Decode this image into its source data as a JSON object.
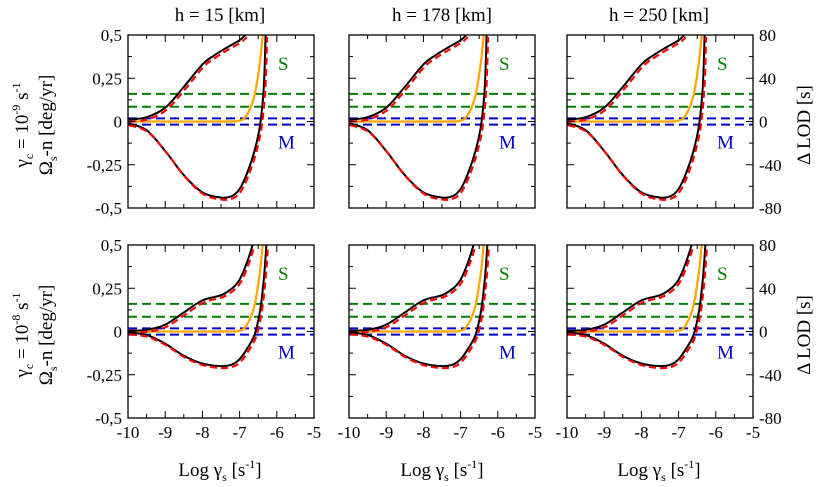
{
  "colors": {
    "S": "#008000",
    "M": "#0000cc",
    "orange": "#ffa500",
    "black": "#000000",
    "red": "#ff0000"
  },
  "chart_data": {
    "type": "line",
    "layout": "2x3 grid of panels",
    "column_titles": [
      "h = 15 [km]",
      "h = 178 [km]",
      "h = 250 [km]"
    ],
    "row_labels": [
      {
        "gamma_c": "γ",
        "gamma_c_sub": "c",
        "eq": " = 10",
        "exp": "-9",
        "unit": " s",
        "unit_exp": "-1"
      },
      {
        "gamma_c": "γ",
        "gamma_c_sub": "c",
        "eq": " = 10",
        "exp": "-8",
        "unit": " s",
        "unit_exp": "-1"
      }
    ],
    "ylabel": {
      "omega": "Ω",
      "sub": "s",
      "rest": "-n  [deg/yr]"
    },
    "y2label": "Δ LOD [s]",
    "xlabel": {
      "pre": "Log γ",
      "sub": "s",
      "unit": " [s",
      "unit_exp": "-1",
      "close": "]"
    },
    "xlim": [
      -10,
      -5
    ],
    "xticks": [
      "-10",
      "-9",
      "-8",
      "-7",
      "-6",
      "-5"
    ],
    "ylim": [
      -0.5,
      0.5
    ],
    "yticks": [
      "0,5",
      "0,25",
      "0",
      "-0,25",
      "-0,5"
    ],
    "y2lim": [
      -80,
      80
    ],
    "y2ticks": [
      "80",
      "40",
      "0",
      "-40",
      "-80"
    ],
    "annotations": {
      "S": "S",
      "M": "M"
    },
    "reference_lines": {
      "S_upper": 0.16,
      "S_lower": 0.085,
      "M_upper": 0.018,
      "M_lower": -0.018
    },
    "panels": [
      {
        "row": 0,
        "col": 0,
        "upper_mid": 0.22,
        "upper_w": 0.55,
        "upper": [
          [
            -10,
            0.01
          ],
          [
            -9.5,
            0.025
          ],
          [
            -9,
            0.08
          ],
          [
            -8.5,
            0.2
          ],
          [
            -8,
            0.33
          ],
          [
            -7.7,
            0.38
          ],
          [
            -7.4,
            0.42
          ],
          [
            -7,
            0.47
          ],
          [
            -6.85,
            0.5
          ]
        ],
        "lower": [
          [
            -10,
            -0.01
          ],
          [
            -9.5,
            -0.05
          ],
          [
            -9,
            -0.17
          ],
          [
            -8.5,
            -0.31
          ],
          [
            -8,
            -0.41
          ],
          [
            -7.5,
            -0.44
          ],
          [
            -7.2,
            -0.43
          ],
          [
            -7,
            -0.39
          ],
          [
            -6.8,
            -0.3
          ],
          [
            -6.6,
            -0.17
          ],
          [
            -6.45,
            -0.02
          ],
          [
            -6.35,
            0.2
          ],
          [
            -6.3,
            0.5
          ]
        ],
        "orange": [
          [
            -10,
            0
          ],
          [
            -7.5,
            0
          ],
          [
            -7,
            0.005
          ],
          [
            -6.8,
            0.04
          ],
          [
            -6.6,
            0.15
          ],
          [
            -6.45,
            0.35
          ],
          [
            -6.38,
            0.5
          ]
        ]
      },
      {
        "row": 0,
        "col": 1,
        "upper": [
          [
            -10,
            0.01
          ],
          [
            -9.5,
            0.025
          ],
          [
            -9,
            0.08
          ],
          [
            -8.5,
            0.2
          ],
          [
            -8,
            0.33
          ],
          [
            -7.7,
            0.38
          ],
          [
            -7.4,
            0.42
          ],
          [
            -7,
            0.47
          ],
          [
            -6.85,
            0.5
          ]
        ],
        "lower": [
          [
            -10,
            -0.01
          ],
          [
            -9.5,
            -0.05
          ],
          [
            -9,
            -0.17
          ],
          [
            -8.5,
            -0.31
          ],
          [
            -8,
            -0.41
          ],
          [
            -7.5,
            -0.44
          ],
          [
            -7.2,
            -0.43
          ],
          [
            -7,
            -0.39
          ],
          [
            -6.8,
            -0.3
          ],
          [
            -6.6,
            -0.17
          ],
          [
            -6.45,
            -0.02
          ],
          [
            -6.35,
            0.2
          ],
          [
            -6.3,
            0.5
          ]
        ],
        "orange": [
          [
            -10,
            0
          ],
          [
            -7.5,
            0
          ],
          [
            -7,
            0.005
          ],
          [
            -6.8,
            0.04
          ],
          [
            -6.6,
            0.15
          ],
          [
            -6.45,
            0.35
          ],
          [
            -6.38,
            0.5
          ]
        ]
      },
      {
        "row": 0,
        "col": 2,
        "upper": [
          [
            -10,
            0.01
          ],
          [
            -9.5,
            0.025
          ],
          [
            -9,
            0.08
          ],
          [
            -8.5,
            0.2
          ],
          [
            -8,
            0.33
          ],
          [
            -7.7,
            0.38
          ],
          [
            -7.4,
            0.42
          ],
          [
            -7,
            0.47
          ],
          [
            -6.85,
            0.5
          ]
        ],
        "lower": [
          [
            -10,
            -0.01
          ],
          [
            -9.5,
            -0.05
          ],
          [
            -9,
            -0.17
          ],
          [
            -8.5,
            -0.31
          ],
          [
            -8,
            -0.41
          ],
          [
            -7.5,
            -0.44
          ],
          [
            -7.2,
            -0.43
          ],
          [
            -7,
            -0.39
          ],
          [
            -6.8,
            -0.3
          ],
          [
            -6.6,
            -0.17
          ],
          [
            -6.45,
            -0.02
          ],
          [
            -6.35,
            0.2
          ],
          [
            -6.3,
            0.5
          ]
        ],
        "orange": [
          [
            -10,
            0
          ],
          [
            -7.5,
            0
          ],
          [
            -7,
            0.005
          ],
          [
            -6.8,
            0.04
          ],
          [
            -6.6,
            0.15
          ],
          [
            -6.45,
            0.35
          ],
          [
            -6.38,
            0.5
          ]
        ]
      },
      {
        "row": 1,
        "col": 0,
        "upper": [
          [
            -10,
            0.005
          ],
          [
            -9.5,
            0.01
          ],
          [
            -9,
            0.04
          ],
          [
            -8.5,
            0.11
          ],
          [
            -8,
            0.18
          ],
          [
            -7.5,
            0.21
          ],
          [
            -7.2,
            0.25
          ],
          [
            -7,
            0.3
          ],
          [
            -6.8,
            0.4
          ],
          [
            -6.65,
            0.5
          ]
        ],
        "lower": [
          [
            -10,
            -0.005
          ],
          [
            -9.5,
            -0.02
          ],
          [
            -9,
            -0.07
          ],
          [
            -8.5,
            -0.14
          ],
          [
            -8,
            -0.185
          ],
          [
            -7.5,
            -0.2
          ],
          [
            -7.2,
            -0.19
          ],
          [
            -7,
            -0.16
          ],
          [
            -6.8,
            -0.1
          ],
          [
            -6.6,
            -0.02
          ],
          [
            -6.45,
            0.12
          ],
          [
            -6.35,
            0.3
          ],
          [
            -6.28,
            0.5
          ]
        ],
        "orange": [
          [
            -10,
            0
          ],
          [
            -7.5,
            0
          ],
          [
            -7,
            0.005
          ],
          [
            -6.8,
            0.04
          ],
          [
            -6.6,
            0.15
          ],
          [
            -6.45,
            0.35
          ],
          [
            -6.38,
            0.5
          ]
        ]
      },
      {
        "row": 1,
        "col": 1,
        "upper": [
          [
            -10,
            0.005
          ],
          [
            -9.5,
            0.01
          ],
          [
            -9,
            0.04
          ],
          [
            -8.5,
            0.11
          ],
          [
            -8,
            0.18
          ],
          [
            -7.5,
            0.21
          ],
          [
            -7.2,
            0.25
          ],
          [
            -7,
            0.3
          ],
          [
            -6.8,
            0.4
          ],
          [
            -6.65,
            0.5
          ]
        ],
        "lower": [
          [
            -10,
            -0.005
          ],
          [
            -9.5,
            -0.02
          ],
          [
            -9,
            -0.07
          ],
          [
            -8.5,
            -0.14
          ],
          [
            -8,
            -0.185
          ],
          [
            -7.5,
            -0.2
          ],
          [
            -7.2,
            -0.19
          ],
          [
            -7,
            -0.16
          ],
          [
            -6.8,
            -0.1
          ],
          [
            -6.6,
            -0.02
          ],
          [
            -6.45,
            0.12
          ],
          [
            -6.35,
            0.3
          ],
          [
            -6.28,
            0.5
          ]
        ],
        "orange": [
          [
            -10,
            0
          ],
          [
            -7.5,
            0
          ],
          [
            -7,
            0.005
          ],
          [
            -6.8,
            0.04
          ],
          [
            -6.6,
            0.15
          ],
          [
            -6.45,
            0.35
          ],
          [
            -6.38,
            0.5
          ]
        ]
      },
      {
        "row": 1,
        "col": 2,
        "upper": [
          [
            -10,
            0.005
          ],
          [
            -9.5,
            0.01
          ],
          [
            -9,
            0.04
          ],
          [
            -8.5,
            0.11
          ],
          [
            -8,
            0.18
          ],
          [
            -7.5,
            0.21
          ],
          [
            -7.2,
            0.25
          ],
          [
            -7,
            0.3
          ],
          [
            -6.8,
            0.4
          ],
          [
            -6.65,
            0.5
          ]
        ],
        "lower": [
          [
            -10,
            -0.005
          ],
          [
            -9.5,
            -0.02
          ],
          [
            -9,
            -0.07
          ],
          [
            -8.5,
            -0.14
          ],
          [
            -8,
            -0.185
          ],
          [
            -7.5,
            -0.2
          ],
          [
            -7.2,
            -0.19
          ],
          [
            -7,
            -0.16
          ],
          [
            -6.8,
            -0.1
          ],
          [
            -6.6,
            -0.02
          ],
          [
            -6.45,
            0.12
          ],
          [
            -6.35,
            0.3
          ],
          [
            -6.28,
            0.5
          ]
        ],
        "orange": [
          [
            -10,
            0
          ],
          [
            -7.5,
            0
          ],
          [
            -7,
            0.005
          ],
          [
            -6.8,
            0.04
          ],
          [
            -6.6,
            0.15
          ],
          [
            -6.45,
            0.35
          ],
          [
            -6.38,
            0.5
          ]
        ]
      }
    ]
  }
}
